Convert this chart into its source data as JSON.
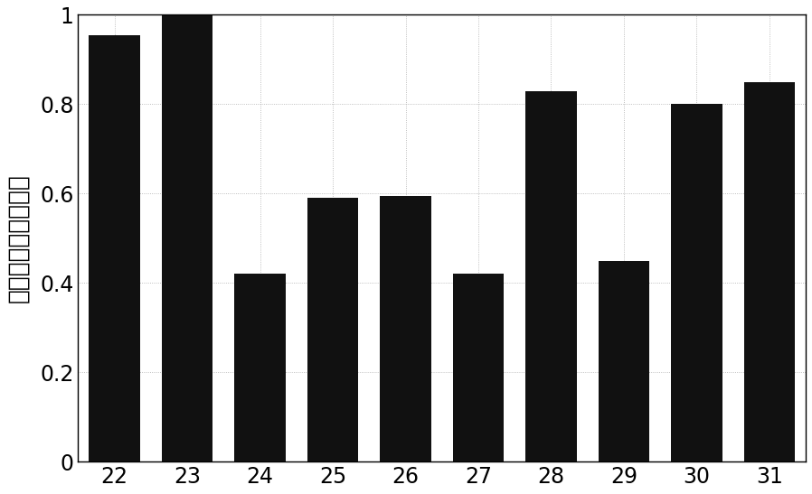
{
  "categories": [
    "22",
    "23",
    "24",
    "25",
    "26",
    "27",
    "28",
    "29",
    "30",
    "31"
  ],
  "x_values": [
    22,
    23,
    24,
    25,
    26,
    27,
    28,
    29,
    30,
    31
  ],
  "values": [
    0.955,
    1.0,
    0.42,
    0.59,
    0.595,
    0.42,
    0.83,
    0.45,
    0.8,
    0.85
  ],
  "bar_color": "#111111",
  "ylabel": "归一化累积特征应力",
  "ylim": [
    0,
    1.0
  ],
  "yticks": [
    0,
    0.2,
    0.4,
    0.6,
    0.8,
    1
  ],
  "xlim": [
    21.5,
    31.5
  ],
  "background_color": "#ffffff",
  "grid": true,
  "bar_width": 0.7
}
